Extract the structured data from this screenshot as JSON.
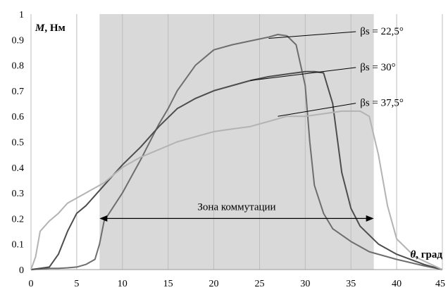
{
  "chart_data": {
    "type": "line",
    "xlabel": {
      "symbol": "θ",
      "unit": ", град"
    },
    "ylabel": {
      "symbol": "M",
      "unit": ", Нм"
    },
    "xlim": [
      0,
      45
    ],
    "ylim": [
      0,
      1
    ],
    "x_ticks": [
      0,
      5,
      10,
      15,
      20,
      25,
      30,
      35,
      40,
      45
    ],
    "y_ticks": [
      0,
      0.1,
      0.2,
      0.3,
      0.4,
      0.5,
      0.6,
      0.7,
      0.8,
      0.9,
      1
    ],
    "grid": "vertical",
    "shaded_region": {
      "x_from": 7.5,
      "x_to": 37.5,
      "label": "Зона коммутации",
      "arrow_y": 0.2,
      "color": "#d9d9d9"
    },
    "series": [
      {
        "name": "βs = 22,5°",
        "color": "#6e6e6e",
        "x": [
          0,
          2,
          3,
          4,
          5,
          6,
          7,
          7.5,
          8,
          10,
          12,
          14,
          15,
          16,
          18,
          20,
          22,
          24,
          26,
          27,
          28,
          29,
          30,
          30.5,
          31,
          32,
          33,
          35,
          37,
          40,
          43,
          45
        ],
        "y": [
          0,
          0.005,
          0.005,
          0.007,
          0.01,
          0.02,
          0.04,
          0.1,
          0.19,
          0.3,
          0.43,
          0.57,
          0.63,
          0.7,
          0.8,
          0.86,
          0.88,
          0.895,
          0.91,
          0.92,
          0.915,
          0.88,
          0.72,
          0.5,
          0.33,
          0.22,
          0.16,
          0.11,
          0.07,
          0.04,
          0.015,
          0
        ]
      },
      {
        "name": "βs = 30°",
        "color": "#4d4d4d",
        "x": [
          0,
          1,
          2,
          3,
          4,
          5,
          6,
          8,
          10,
          12,
          14,
          16,
          18,
          20,
          22,
          24,
          26,
          28,
          30,
          31,
          32,
          33,
          34,
          35,
          36,
          38,
          40,
          43,
          45
        ],
        "y": [
          0,
          0.005,
          0.01,
          0.06,
          0.15,
          0.22,
          0.25,
          0.33,
          0.41,
          0.48,
          0.56,
          0.63,
          0.67,
          0.7,
          0.72,
          0.74,
          0.755,
          0.765,
          0.775,
          0.775,
          0.77,
          0.65,
          0.38,
          0.24,
          0.17,
          0.1,
          0.06,
          0.02,
          0
        ]
      },
      {
        "name": "βs = 37,5°",
        "color": "#b3b3b3",
        "x": [
          0,
          0.5,
          1,
          2,
          3,
          4,
          5,
          6,
          8,
          10,
          12,
          14,
          16,
          18,
          20,
          22,
          24,
          26,
          28,
          30,
          32,
          34,
          36,
          37,
          38,
          39,
          40,
          42,
          45
        ],
        "y": [
          0,
          0.05,
          0.15,
          0.19,
          0.22,
          0.26,
          0.28,
          0.3,
          0.34,
          0.4,
          0.44,
          0.47,
          0.5,
          0.52,
          0.54,
          0.55,
          0.56,
          0.58,
          0.6,
          0.6,
          0.61,
          0.62,
          0.62,
          0.6,
          0.45,
          0.25,
          0.12,
          0.05,
          0
        ]
      }
    ],
    "annotations": [
      {
        "text": "βs = 22,5°",
        "points_to": [
          26,
          0.905
        ],
        "label_at": [
          36,
          0.92
        ]
      },
      {
        "text": "βs = 30°",
        "points_to": [
          24,
          0.74
        ],
        "label_at": [
          36,
          0.78
        ]
      },
      {
        "text": "βs = 37,5°",
        "points_to": [
          27,
          0.6
        ],
        "label_at": [
          36,
          0.64
        ]
      }
    ]
  }
}
